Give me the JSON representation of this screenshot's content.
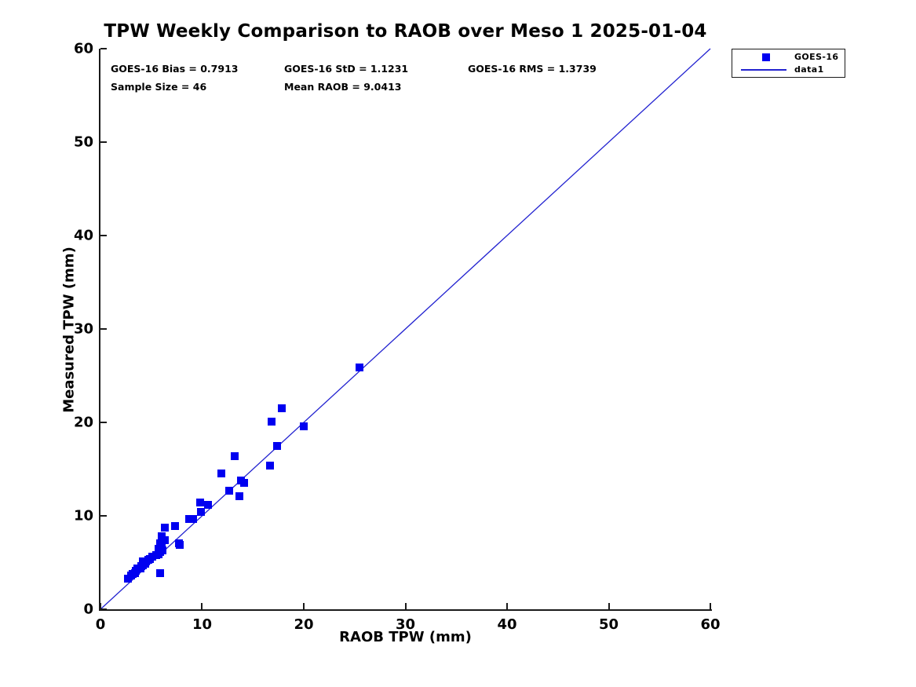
{
  "figure": {
    "background": "#ffffff"
  },
  "chart_data": {
    "type": "scatter",
    "title": "TPW Weekly Comparison to RAOB over Meso 1 2025-01-04",
    "xlabel": "RAOB TPW (mm)",
    "ylabel": "Measured TPW (mm)",
    "xlim": [
      0,
      60
    ],
    "ylim": [
      0,
      60
    ],
    "xticks": [
      0,
      10,
      20,
      30,
      40,
      50,
      60
    ],
    "yticks": [
      0,
      10,
      20,
      30,
      40,
      50,
      60
    ],
    "grid": false,
    "axis_color": "#1a1a1a",
    "text_color": "#000000",
    "annotations": {
      "bias": "GOES-16 Bias = 0.7913",
      "std": "GOES-16 StD = 1.1231",
      "rms": "GOES-16 RMS = 1.3739",
      "sample_size": "Sample Size = 46",
      "mean_raob": "Mean RAOB = 9.0413"
    },
    "legend": {
      "position": "outside-top-right",
      "entries": [
        {
          "label": "GOES-16",
          "type": "marker",
          "color": "#0000f0"
        },
        {
          "label": "data1",
          "type": "line",
          "color": "#2222d0"
        }
      ]
    },
    "series": [
      {
        "name": "GOES-16",
        "type": "scatter",
        "marker": "square",
        "color": "#0000f0",
        "points": [
          [
            2.7,
            3.3
          ],
          [
            3.0,
            3.6
          ],
          [
            3.2,
            3.8
          ],
          [
            3.4,
            3.9
          ],
          [
            3.5,
            4.1
          ],
          [
            3.6,
            4.4
          ],
          [
            3.9,
            4.4
          ],
          [
            4.0,
            4.6
          ],
          [
            4.2,
            4.7
          ],
          [
            4.2,
            5.1
          ],
          [
            4.4,
            4.9
          ],
          [
            4.5,
            5.1
          ],
          [
            4.7,
            5.3
          ],
          [
            4.9,
            5.4
          ],
          [
            5.1,
            5.6
          ],
          [
            5.5,
            5.8
          ],
          [
            5.7,
            5.9
          ],
          [
            5.7,
            6.5
          ],
          [
            5.9,
            3.9
          ],
          [
            5.9,
            6.1
          ],
          [
            5.9,
            7.1
          ],
          [
            6.0,
            6.8
          ],
          [
            6.0,
            7.8
          ],
          [
            6.1,
            6.3
          ],
          [
            6.3,
            7.4
          ],
          [
            6.3,
            8.7
          ],
          [
            7.3,
            8.9
          ],
          [
            7.7,
            7.1
          ],
          [
            7.8,
            6.9
          ],
          [
            8.7,
            9.7
          ],
          [
            9.1,
            9.7
          ],
          [
            9.8,
            11.4
          ],
          [
            9.9,
            10.4
          ],
          [
            10.6,
            11.2
          ],
          [
            11.9,
            14.5
          ],
          [
            12.7,
            12.7
          ],
          [
            13.2,
            16.4
          ],
          [
            13.7,
            12.1
          ],
          [
            13.8,
            13.8
          ],
          [
            14.1,
            13.5
          ],
          [
            16.7,
            15.4
          ],
          [
            16.8,
            20.1
          ],
          [
            17.4,
            17.5
          ],
          [
            17.8,
            21.5
          ],
          [
            20.0,
            19.6
          ],
          [
            25.5,
            25.9
          ]
        ]
      },
      {
        "name": "data1",
        "type": "line",
        "color": "#2222d0",
        "points": [
          [
            0,
            0
          ],
          [
            60,
            60
          ]
        ]
      }
    ]
  }
}
